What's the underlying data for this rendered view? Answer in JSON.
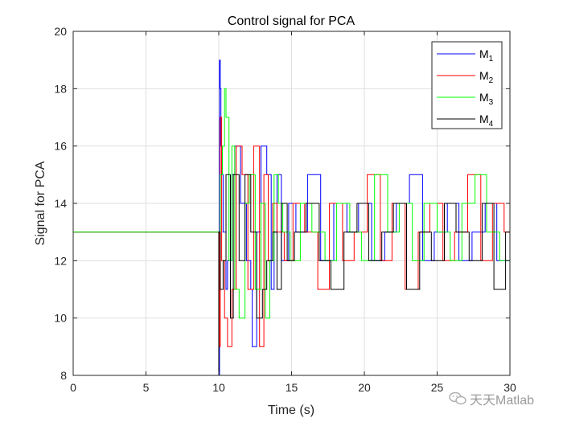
{
  "chart_data": {
    "type": "line",
    "title": "Control signal for PCA",
    "xlabel": "Time (s)",
    "ylabel": "Signal for PCA",
    "xlim": [
      0,
      30
    ],
    "ylim": [
      8,
      20
    ],
    "xticks": [
      0,
      5,
      10,
      15,
      20,
      25,
      30
    ],
    "yticks": [
      8,
      10,
      12,
      14,
      16,
      18,
      20
    ],
    "grid": true,
    "legend_position": "top-right",
    "series": [
      {
        "name": "M",
        "sub": "1",
        "color": "#0000ff",
        "x": [
          0,
          10,
          10,
          10.05,
          10.1,
          10.15,
          10.2,
          10.3,
          10.5,
          10.6,
          10.9,
          11.1,
          11.5,
          11.9,
          12.2,
          12.3,
          12.6,
          12.9,
          13.3,
          13.6,
          13.8,
          14.0,
          14.3,
          14.8,
          15.3,
          16.1,
          17.0,
          17.9,
          18.8,
          19.6,
          20.5,
          21.4,
          22.2,
          23.1,
          24.0,
          24.8,
          25.7,
          26.5,
          27.4,
          28.3,
          29.1,
          30
        ],
        "y": [
          13,
          13,
          8,
          19,
          18,
          16,
          15,
          13,
          11,
          12,
          15,
          16,
          14,
          12,
          11,
          9,
          13,
          16,
          15,
          11,
          13,
          15,
          12,
          14,
          13,
          15,
          12,
          14,
          13,
          14,
          12,
          13,
          14,
          15,
          12,
          13,
          14,
          12,
          13,
          14,
          12,
          13
        ]
      },
      {
        "name": "M",
        "sub": "2",
        "color": "#ff0000",
        "x": [
          0,
          10,
          10.05,
          10.1,
          10.2,
          10.4,
          10.6,
          10.9,
          11.2,
          11.6,
          12.0,
          12.4,
          12.8,
          13.1,
          13.4,
          13.7,
          14.0,
          14.5,
          15.1,
          15.9,
          16.8,
          17.6,
          18.5,
          19.3,
          20.2,
          21.1,
          21.9,
          22.8,
          23.7,
          24.5,
          25.4,
          26.2,
          27.1,
          28.0,
          28.8,
          29.6,
          30
        ],
        "y": [
          13,
          13,
          9,
          17,
          12,
          10,
          9,
          11,
          16,
          15,
          11,
          16,
          9,
          15,
          12,
          14,
          13,
          12,
          14,
          13,
          11,
          14,
          12,
          13,
          15,
          12,
          14,
          11,
          13,
          14,
          12,
          13,
          15,
          12,
          14,
          13,
          11
        ]
      },
      {
        "name": "M",
        "sub": "3",
        "color": "#00ff00",
        "x": [
          0,
          10,
          10.1,
          10.25,
          10.4,
          10.5,
          10.7,
          10.9,
          11.1,
          11.4,
          11.8,
          12.1,
          12.5,
          12.9,
          13.2,
          13.5,
          13.8,
          14.1,
          14.4,
          14.9,
          15.6,
          16.4,
          17.3,
          18.1,
          19.0,
          19.8,
          20.7,
          21.6,
          22.4,
          23.3,
          24.1,
          25.0,
          25.9,
          26.7,
          27.6,
          28.4,
          29.3,
          30
        ],
        "y": [
          13,
          13,
          15,
          16,
          18,
          17,
          12,
          16,
          11,
          10,
          14,
          15,
          11,
          14,
          10,
          12,
          15,
          14,
          13,
          12,
          14,
          13,
          12,
          14,
          13,
          12,
          15,
          13,
          14,
          12,
          14,
          13,
          12,
          14,
          15,
          13,
          12,
          14
        ]
      },
      {
        "name": "M",
        "sub": "4",
        "color": "#000000",
        "x": [
          0,
          10,
          10,
          10.1,
          10.3,
          10.5,
          10.8,
          11.0,
          11.4,
          11.8,
          12.2,
          12.6,
          13.0,
          13.3,
          13.7,
          14.0,
          14.3,
          14.7,
          15.2,
          16.0,
          16.9,
          17.7,
          18.6,
          19.5,
          20.3,
          21.2,
          22.0,
          22.9,
          23.8,
          24.6,
          25.5,
          26.3,
          27.2,
          28.1,
          28.9,
          29.7,
          30
        ],
        "y": [
          8,
          8,
          13,
          11,
          12,
          15,
          10,
          15,
          12,
          15,
          13,
          10,
          11,
          12,
          13,
          11,
          14,
          12,
          13,
          14,
          12,
          11,
          13,
          14,
          12,
          13,
          14,
          11,
          13,
          12,
          14,
          13,
          12,
          14,
          11,
          13,
          12
        ]
      }
    ]
  },
  "watermark": {
    "text": "天天Matlab",
    "icon": "wechat-icon"
  }
}
